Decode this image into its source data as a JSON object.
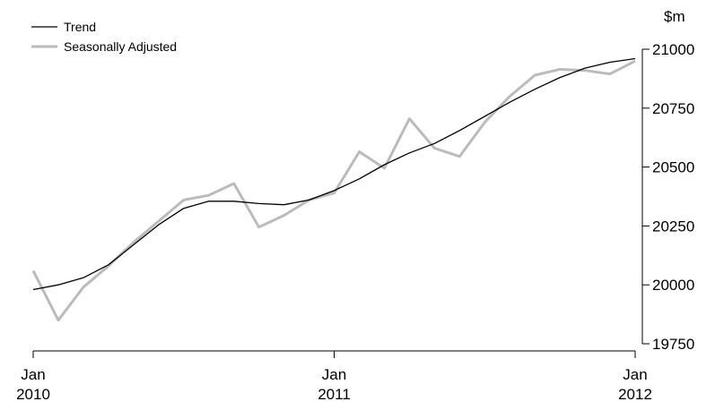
{
  "chart_data": {
    "type": "line",
    "title": "",
    "unit": "$m",
    "x": [
      "2010-01",
      "2010-02",
      "2010-03",
      "2010-04",
      "2010-05",
      "2010-06",
      "2010-07",
      "2010-08",
      "2010-09",
      "2010-10",
      "2010-11",
      "2010-12",
      "2011-01",
      "2011-02",
      "2011-03",
      "2011-04",
      "2011-05",
      "2011-06",
      "2011-07",
      "2011-08",
      "2011-09",
      "2011-10",
      "2011-11",
      "2011-12",
      "2012-01"
    ],
    "x_ticks": [
      {
        "x": "2010-01",
        "month": "Jan",
        "year": "2010"
      },
      {
        "x": "2011-01",
        "month": "Jan",
        "year": "2011"
      },
      {
        "x": "2012-01",
        "month": "Jan",
        "year": "2012"
      }
    ],
    "ylim": [
      19750,
      21000
    ],
    "y_ticks": [
      19750,
      20000,
      20250,
      20500,
      20750,
      21000
    ],
    "legend_position": "top-left",
    "grid": false,
    "series": [
      {
        "name": "Trend",
        "color": "#000000",
        "values": [
          19980,
          20000,
          20030,
          20085,
          20170,
          20255,
          20325,
          20355,
          20355,
          20345,
          20340,
          20360,
          20400,
          20450,
          20510,
          20560,
          20600,
          20655,
          20715,
          20775,
          20830,
          20880,
          20920,
          20945,
          20960
        ]
      },
      {
        "name": "Seasonally Adjusted",
        "color": "#bbbbbb",
        "values": [
          20060,
          19850,
          19990,
          20080,
          20180,
          20270,
          20360,
          20380,
          20430,
          20245,
          20295,
          20360,
          20390,
          20565,
          20495,
          20705,
          20580,
          20545,
          20690,
          20800,
          20890,
          20915,
          20910,
          20895,
          20950
        ]
      }
    ]
  }
}
